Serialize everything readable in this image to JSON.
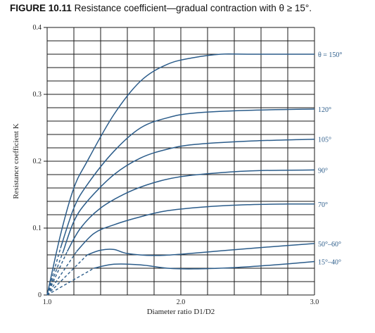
{
  "figure": {
    "label": "FIGURE 10.11",
    "caption": "Resistance coefficient—gradual contraction with θ ≥ 15°."
  },
  "chart_data": {
    "type": "line",
    "title": "FIGURE 10.11 Resistance coefficient—gradual contraction with θ ≥ 15°.",
    "xlabel": "Diameter ratio D1/D2",
    "ylabel": "Resistance coefficient K",
    "xlim": [
      1.0,
      3.0
    ],
    "ylim": [
      0,
      0.4
    ],
    "x_ticks": [
      "1.0",
      "2.0",
      "3.0"
    ],
    "y_ticks": [
      "0",
      "0.1",
      "0.2",
      "0.3",
      "0.4"
    ],
    "grid": true,
    "series": [
      {
        "name": "θ = 150°",
        "dashed_until": 1.0,
        "points": [
          [
            1.0,
            0.0
          ],
          [
            1.1,
            0.09
          ],
          [
            1.2,
            0.16
          ],
          [
            1.3,
            0.2
          ],
          [
            1.5,
            0.27
          ],
          [
            1.7,
            0.32
          ],
          [
            1.9,
            0.345
          ],
          [
            2.1,
            0.355
          ],
          [
            2.3,
            0.36
          ],
          [
            2.5,
            0.36
          ],
          [
            3.0,
            0.36
          ]
        ]
      },
      {
        "name": "120°",
        "dashed_until": 1.1,
        "points": [
          [
            1.0,
            0.0
          ],
          [
            1.1,
            0.07
          ],
          [
            1.2,
            0.13
          ],
          [
            1.3,
            0.165
          ],
          [
            1.5,
            0.215
          ],
          [
            1.7,
            0.25
          ],
          [
            1.9,
            0.265
          ],
          [
            2.1,
            0.272
          ],
          [
            2.5,
            0.276
          ],
          [
            3.0,
            0.278
          ]
        ]
      },
      {
        "name": "105°",
        "dashed_until": 1.12,
        "points": [
          [
            1.0,
            0.0
          ],
          [
            1.12,
            0.065
          ],
          [
            1.2,
            0.11
          ],
          [
            1.3,
            0.14
          ],
          [
            1.5,
            0.18
          ],
          [
            1.7,
            0.205
          ],
          [
            1.9,
            0.218
          ],
          [
            2.1,
            0.225
          ],
          [
            2.5,
            0.23
          ],
          [
            3.0,
            0.233
          ]
        ]
      },
      {
        "name": "90°",
        "dashed_until": 1.15,
        "points": [
          [
            1.0,
            0.0
          ],
          [
            1.15,
            0.065
          ],
          [
            1.25,
            0.1
          ],
          [
            1.4,
            0.13
          ],
          [
            1.6,
            0.153
          ],
          [
            1.8,
            0.168
          ],
          [
            2.0,
            0.177
          ],
          [
            2.3,
            0.183
          ],
          [
            2.6,
            0.186
          ],
          [
            3.0,
            0.187
          ]
        ]
      },
      {
        "name": "70°",
        "dashed_until": 1.22,
        "points": [
          [
            1.0,
            0.0
          ],
          [
            1.22,
            0.065
          ],
          [
            1.35,
            0.092
          ],
          [
            1.5,
            0.105
          ],
          [
            1.7,
            0.117
          ],
          [
            1.9,
            0.126
          ],
          [
            2.2,
            0.132
          ],
          [
            2.5,
            0.135
          ],
          [
            2.8,
            0.136
          ],
          [
            3.0,
            0.136
          ]
        ]
      },
      {
        "name": "50°–60°",
        "dashed_until": 1.3,
        "points": [
          [
            1.0,
            0.0
          ],
          [
            1.3,
            0.06
          ],
          [
            1.4,
            0.067
          ],
          [
            1.5,
            0.068
          ],
          [
            1.6,
            0.062
          ],
          [
            1.8,
            0.059
          ],
          [
            2.0,
            0.061
          ],
          [
            2.3,
            0.066
          ],
          [
            2.6,
            0.071
          ],
          [
            3.0,
            0.077
          ]
        ]
      },
      {
        "name": "15°–40°",
        "dashed_until": 1.35,
        "points": [
          [
            1.0,
            0.0
          ],
          [
            1.35,
            0.04
          ],
          [
            1.5,
            0.046
          ],
          [
            1.7,
            0.045
          ],
          [
            1.9,
            0.04
          ],
          [
            2.1,
            0.039
          ],
          [
            2.4,
            0.041
          ],
          [
            2.7,
            0.045
          ],
          [
            3.0,
            0.05
          ]
        ]
      }
    ]
  }
}
